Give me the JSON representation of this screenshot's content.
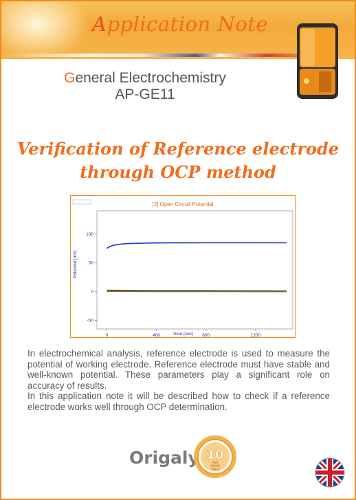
{
  "banner": {
    "title_first": "A",
    "title_rest": "pplication Note"
  },
  "header": {
    "subtitle_first": "G",
    "subtitle_rest": "eneral Electrochemistry",
    "code": "AP-GE11"
  },
  "title": {
    "line1": "Verification of Reference electrode",
    "line2": "through OCP method"
  },
  "chart_data": {
    "type": "line",
    "title": "[2] Open Circuit Potential",
    "xlabel": "Time [sec]",
    "ylabel": "Potential [mV]",
    "xlim": [
      -80,
      1500
    ],
    "ylim": [
      -65,
      140
    ],
    "xticks": [
      0,
      400,
      800,
      1200
    ],
    "yticks": [
      100,
      50,
      0,
      -50
    ],
    "grid": false,
    "series": [
      {
        "color": "#2230c8",
        "x": [
          0,
          25,
          50,
          100,
          150,
          200,
          300,
          400,
          500,
          600,
          800,
          1000,
          1200,
          1450
        ],
        "y": [
          75,
          78,
          80,
          82,
          83,
          83.5,
          84,
          84.3,
          84.5,
          84.5,
          84.6,
          84.6,
          84.6,
          84.6
        ]
      },
      {
        "color": "#b8302c",
        "x": [
          0,
          200,
          400,
          600,
          800,
          1000,
          1200,
          1450
        ],
        "y": [
          2.2,
          2.0,
          1.8,
          1.6,
          1.5,
          1.4,
          1.3,
          1.2
        ]
      },
      {
        "color": "#3a8a3a",
        "x": [
          0,
          200,
          400,
          600,
          800,
          1000,
          1200,
          1450
        ],
        "y": [
          0.3,
          0.2,
          0.1,
          0.0,
          -0.1,
          -0.1,
          -0.2,
          -0.2
        ]
      }
    ]
  },
  "body": {
    "p1": "In electrochemical analysis, reference electrode is used to measure the potential of working electrode. Reference electrode must have stable and well-known potential. These parameters play a significant role on accuracy of results.",
    "p2": "In this application note it will be described how to check if a reference electrode works well through OCP determination."
  },
  "footer": {
    "logo_text": "Origalys",
    "badge": {
      "number": "10",
      "line1": "ANS",
      "line2": "YEARS",
      "line3": "ANOS"
    }
  },
  "colors": {
    "accent": "#f06d1c",
    "border": "#f08a1c",
    "text": "#5a5a5a"
  }
}
